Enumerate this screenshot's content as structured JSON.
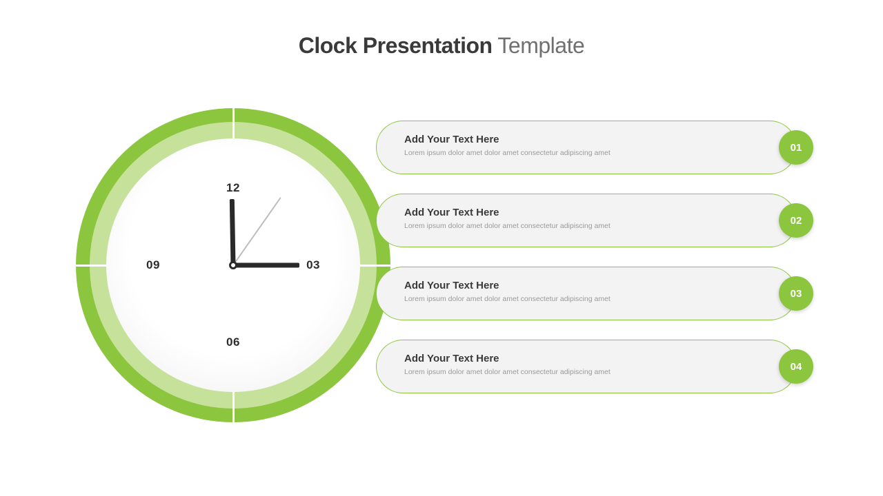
{
  "title": {
    "bold": "Clock Presentation",
    "light": " Template",
    "bold_color": "#3a3a3a",
    "light_color": "#707070",
    "fontsize": 32
  },
  "accent_color": "#8cc63f",
  "accent_color_light": "#c6e29a",
  "background_color": "#ffffff",
  "clock": {
    "outer_diameter": 456,
    "ring_outer_color": "#8cc63f",
    "ring_inner_color": "#c6e29a",
    "face_bg": "#ffffff",
    "numbers": {
      "n12": "12",
      "n03": "03",
      "n06": "06",
      "n09": "09"
    },
    "number_color": "#2c2c2c",
    "tick_color": "#ffffff",
    "hands": {
      "hour": {
        "length": 96,
        "width": 7,
        "angle_deg": 269,
        "color": "#2a2a2a"
      },
      "minute": {
        "length": 96,
        "width": 7,
        "angle_deg": 0,
        "color": "#2a2a2a"
      },
      "second": {
        "length": 120,
        "width": 2,
        "angle_deg": 305,
        "color": "#bdbdbd"
      }
    }
  },
  "items": [
    {
      "num": "01",
      "title": "Add Your Text Here",
      "desc": "Lorem ipsum dolor amet dolor amet consectetur adipiscing amet"
    },
    {
      "num": "02",
      "title": "Add Your Text Here",
      "desc": "Lorem ipsum dolor amet dolor amet consectetur adipiscing amet"
    },
    {
      "num": "03",
      "title": "Add Your Text Here",
      "desc": "Lorem ipsum dolor amet dolor amet consectetur adipiscing amet"
    },
    {
      "num": "04",
      "title": "Add Your Text Here",
      "desc": "Lorem ipsum dolor amet dolor amet consectetur adipiscing amet"
    }
  ],
  "item_style": {
    "bg": "#f3f3f3",
    "border_color": "#8cc63f",
    "badge_bg": "#8cc63f",
    "title_color": "#3a3a3a",
    "desc_color": "#9a9a9a"
  }
}
